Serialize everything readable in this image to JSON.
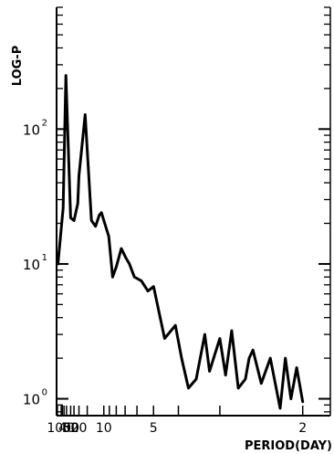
{
  "chart_data": {
    "type": "line",
    "title": "",
    "xlabel": "PERIOD(DAY)",
    "ylabel": "LOG-P",
    "x_scale": "reciprocal",
    "y_scale": "log",
    "xlim": [
      200,
      1.8
    ],
    "ylim": [
      0.75,
      800
    ],
    "grid": false,
    "x_ticks": [
      {
        "value": 100,
        "label": "100"
      },
      {
        "value": 50,
        "label": "50"
      },
      {
        "value": 40,
        "label": "40"
      },
      {
        "value": 30,
        "label": "30"
      },
      {
        "value": 20,
        "label": "20"
      },
      {
        "value": 10,
        "label": "10"
      },
      {
        "value": 5,
        "label": "5"
      },
      {
        "value": 2,
        "label": "2"
      }
    ],
    "y_ticks": [
      {
        "value": 1,
        "label": "10",
        "exp": "0"
      },
      {
        "value": 10,
        "label": "10",
        "exp": "1"
      },
      {
        "value": 100,
        "label": "10",
        "exp": "2"
      }
    ],
    "series": [
      {
        "x": [
          130,
          55,
          42,
          30,
          25,
          21,
          20,
          16,
          15,
          13.3,
          12,
          11,
          10.5,
          10,
          9.1,
          8.5,
          8,
          7.4,
          6.9,
          6.6,
          6.2,
          5.7,
          5.3,
          5,
          4.5,
          4.1,
          3.9,
          3.7,
          3.5,
          3.3,
          3.2,
          3.0,
          2.9,
          2.8,
          2.7,
          2.6,
          2.55,
          2.5,
          2.4,
          2.3,
          2.2,
          2.15,
          2.1,
          2.05,
          2.0
        ],
        "values": [
          10,
          26,
          250,
          22,
          21,
          28,
          45,
          128,
          70,
          21,
          19,
          23,
          24,
          21,
          16,
          8,
          9.5,
          13,
          11,
          10,
          8,
          7.5,
          6.3,
          6.8,
          2.8,
          3.5,
          2.0,
          1.2,
          1.4,
          3.0,
          1.6,
          2.8,
          1.5,
          3.2,
          1.2,
          1.4,
          2.0,
          2.3,
          1.3,
          2.0,
          0.85,
          2.0,
          1.0,
          1.7,
          0.95
        ]
      }
    ]
  }
}
